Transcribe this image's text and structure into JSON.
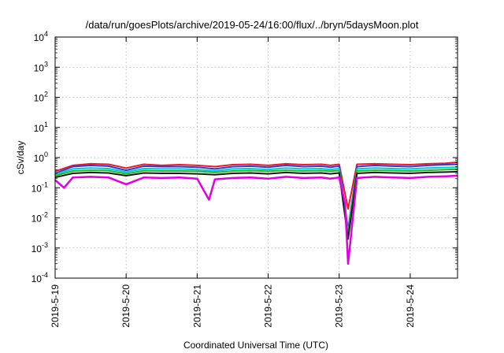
{
  "chart_data": {
    "type": "line",
    "title": "/data/run/goesPlots/archive/2019-05-24/16:00/flux/../bryn/5daysMoon.plot",
    "xlabel": "Coordinated Universal Time (UTC)",
    "ylabel": "cSv/day",
    "yscale": "log",
    "ylim": [
      0.0001,
      10000
    ],
    "xlim": [
      "2019-05-19 00:00",
      "2019-05-24 16:00"
    ],
    "grid": true,
    "x_ticks": [
      "2019-5-19",
      "2019-5-20",
      "2019-5-21",
      "2019-5-22",
      "2019-5-23",
      "2019-5-24"
    ],
    "y_ticks": [
      {
        "base": "10",
        "exp": "4",
        "value": 10000
      },
      {
        "base": "10",
        "exp": "3",
        "value": 1000
      },
      {
        "base": "10",
        "exp": "2",
        "value": 100
      },
      {
        "base": "10",
        "exp": "1",
        "value": 10
      },
      {
        "base": "10",
        "exp": "0",
        "value": 1
      },
      {
        "base": "10",
        "exp": "-1",
        "value": 0.1
      },
      {
        "base": "10",
        "exp": "-2",
        "value": 0.01
      },
      {
        "base": "10",
        "exp": "-3",
        "value": 0.001
      },
      {
        "base": "10",
        "exp": "-4",
        "value": 0.0001
      }
    ],
    "series": [
      {
        "color": "#e8192c",
        "width": 2,
        "x": [
          "2019-05-19 00:00",
          "2019-05-19 06:00",
          "2019-05-19 12:00",
          "2019-05-19 18:00",
          "2019-05-20 00:00",
          "2019-05-20 06:00",
          "2019-05-20 12:00",
          "2019-05-20 18:00",
          "2019-05-21 00:00",
          "2019-05-21 06:00",
          "2019-05-21 12:00",
          "2019-05-21 18:00",
          "2019-05-22 00:00",
          "2019-05-22 06:00",
          "2019-05-22 12:00",
          "2019-05-22 18:00",
          "2019-05-22 21:00",
          "2019-05-23 00:00",
          "2019-05-23 03:00",
          "2019-05-23 06:00",
          "2019-05-23 12:00",
          "2019-05-23 18:00",
          "2019-05-24 00:00",
          "2019-05-24 06:00",
          "2019-05-24 12:00",
          "2019-05-24 16:00"
        ],
        "values": [
          0.35,
          0.55,
          0.62,
          0.6,
          0.45,
          0.6,
          0.55,
          0.58,
          0.55,
          0.5,
          0.58,
          0.6,
          0.55,
          0.62,
          0.58,
          0.6,
          0.55,
          0.6,
          0.02,
          0.6,
          0.62,
          0.6,
          0.58,
          0.62,
          0.65,
          0.7
        ]
      },
      {
        "color": "#2a3fd4",
        "width": 2,
        "x": [
          "2019-05-19 00:00",
          "2019-05-19 06:00",
          "2019-05-19 12:00",
          "2019-05-19 18:00",
          "2019-05-20 00:00",
          "2019-05-20 06:00",
          "2019-05-20 12:00",
          "2019-05-20 18:00",
          "2019-05-21 00:00",
          "2019-05-21 06:00",
          "2019-05-21 12:00",
          "2019-05-21 18:00",
          "2019-05-22 00:00",
          "2019-05-22 06:00",
          "2019-05-22 12:00",
          "2019-05-22 18:00",
          "2019-05-22 21:00",
          "2019-05-23 00:00",
          "2019-05-23 03:00",
          "2019-05-23 06:00",
          "2019-05-23 12:00",
          "2019-05-23 18:00",
          "2019-05-24 00:00",
          "2019-05-24 06:00",
          "2019-05-24 12:00",
          "2019-05-24 16:00"
        ],
        "values": [
          0.3,
          0.5,
          0.55,
          0.52,
          0.38,
          0.52,
          0.5,
          0.5,
          0.48,
          0.42,
          0.5,
          0.52,
          0.48,
          0.55,
          0.5,
          0.52,
          0.48,
          0.52,
          0.004,
          0.5,
          0.55,
          0.52,
          0.5,
          0.55,
          0.58,
          0.6
        ]
      },
      {
        "color": "#00c8d8",
        "width": 2,
        "x": [
          "2019-05-19 00:00",
          "2019-05-19 06:00",
          "2019-05-19 12:00",
          "2019-05-19 18:00",
          "2019-05-20 00:00",
          "2019-05-20 06:00",
          "2019-05-20 12:00",
          "2019-05-20 18:00",
          "2019-05-21 00:00",
          "2019-05-21 06:00",
          "2019-05-21 12:00",
          "2019-05-21 18:00",
          "2019-05-22 00:00",
          "2019-05-22 06:00",
          "2019-05-22 12:00",
          "2019-05-22 18:00",
          "2019-05-22 21:00",
          "2019-05-23 00:00",
          "2019-05-23 03:00",
          "2019-05-23 06:00",
          "2019-05-23 12:00",
          "2019-05-23 18:00",
          "2019-05-24 00:00",
          "2019-05-24 06:00",
          "2019-05-24 12:00",
          "2019-05-24 16:00"
        ],
        "values": [
          0.28,
          0.42,
          0.45,
          0.43,
          0.33,
          0.43,
          0.42,
          0.42,
          0.4,
          0.36,
          0.42,
          0.43,
          0.4,
          0.45,
          0.42,
          0.43,
          0.4,
          0.43,
          0.003,
          0.42,
          0.45,
          0.43,
          0.42,
          0.45,
          0.47,
          0.48
        ]
      },
      {
        "color": "#22b822",
        "width": 2,
        "x": [
          "2019-05-19 00:00",
          "2019-05-19 06:00",
          "2019-05-19 12:00",
          "2019-05-19 18:00",
          "2019-05-20 00:00",
          "2019-05-20 06:00",
          "2019-05-20 12:00",
          "2019-05-20 18:00",
          "2019-05-21 00:00",
          "2019-05-21 06:00",
          "2019-05-21 12:00",
          "2019-05-21 18:00",
          "2019-05-22 00:00",
          "2019-05-22 06:00",
          "2019-05-22 12:00",
          "2019-05-22 18:00",
          "2019-05-22 21:00",
          "2019-05-23 00:00",
          "2019-05-23 03:00",
          "2019-05-23 06:00",
          "2019-05-23 12:00",
          "2019-05-23 18:00",
          "2019-05-24 00:00",
          "2019-05-24 06:00",
          "2019-05-24 12:00",
          "2019-05-24 16:00"
        ],
        "values": [
          0.25,
          0.36,
          0.38,
          0.37,
          0.29,
          0.37,
          0.36,
          0.36,
          0.35,
          0.32,
          0.36,
          0.37,
          0.35,
          0.38,
          0.36,
          0.37,
          0.35,
          0.37,
          0.003,
          0.36,
          0.38,
          0.37,
          0.36,
          0.38,
          0.4,
          0.41
        ]
      },
      {
        "color": "#1a1a1a",
        "width": 2,
        "x": [
          "2019-05-19 00:00",
          "2019-05-19 06:00",
          "2019-05-19 12:00",
          "2019-05-19 18:00",
          "2019-05-20 00:00",
          "2019-05-20 06:00",
          "2019-05-20 12:00",
          "2019-05-20 18:00",
          "2019-05-21 00:00",
          "2019-05-21 06:00",
          "2019-05-21 12:00",
          "2019-05-21 18:00",
          "2019-05-22 00:00",
          "2019-05-22 06:00",
          "2019-05-22 12:00",
          "2019-05-22 18:00",
          "2019-05-22 21:00",
          "2019-05-23 00:00",
          "2019-05-23 03:00",
          "2019-05-23 06:00",
          "2019-05-23 12:00",
          "2019-05-23 18:00",
          "2019-05-24 00:00",
          "2019-05-24 06:00",
          "2019-05-24 12:00",
          "2019-05-24 16:00"
        ],
        "values": [
          0.22,
          0.3,
          0.32,
          0.31,
          0.25,
          0.31,
          0.3,
          0.3,
          0.29,
          0.27,
          0.3,
          0.31,
          0.29,
          0.32,
          0.3,
          0.31,
          0.29,
          0.31,
          0.002,
          0.3,
          0.32,
          0.31,
          0.3,
          0.32,
          0.33,
          0.34
        ]
      },
      {
        "color": "#e000e0",
        "width": 2.5,
        "x": [
          "2019-05-19 00:00",
          "2019-05-19 03:00",
          "2019-05-19 06:00",
          "2019-05-19 12:00",
          "2019-05-19 18:00",
          "2019-05-20 00:00",
          "2019-05-20 06:00",
          "2019-05-20 12:00",
          "2019-05-20 18:00",
          "2019-05-21 00:00",
          "2019-05-21 04:00",
          "2019-05-21 06:00",
          "2019-05-21 12:00",
          "2019-05-21 18:00",
          "2019-05-22 00:00",
          "2019-05-22 06:00",
          "2019-05-22 12:00",
          "2019-05-22 18:00",
          "2019-05-22 21:00",
          "2019-05-23 00:00",
          "2019-05-23 02:00",
          "2019-05-23 03:00",
          "2019-05-23 06:00",
          "2019-05-23 12:00",
          "2019-05-23 18:00",
          "2019-05-24 00:00",
          "2019-05-24 06:00",
          "2019-05-24 12:00",
          "2019-05-24 16:00"
        ],
        "values": [
          0.18,
          0.1,
          0.22,
          0.23,
          0.22,
          0.13,
          0.22,
          0.21,
          0.22,
          0.2,
          0.04,
          0.19,
          0.21,
          0.22,
          0.2,
          0.23,
          0.21,
          0.22,
          0.2,
          0.22,
          0.03,
          0.0003,
          0.21,
          0.23,
          0.22,
          0.21,
          0.23,
          0.24,
          0.25
        ]
      }
    ]
  }
}
